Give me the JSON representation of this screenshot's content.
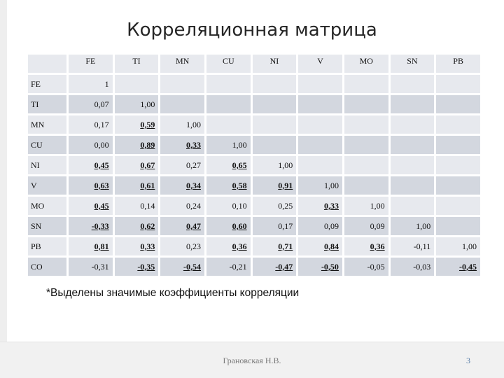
{
  "slide": {
    "title": "Корреляционная матрица",
    "note": "*Выделены значимые коэффициенты корреляции",
    "author": "Грановская Н.В.",
    "page_number": "3",
    "colors": {
      "row_light": "#e7e9ee",
      "row_dark": "#d3d7df",
      "page_number": "#5a7fa8"
    }
  },
  "table": {
    "columns": [
      "FE",
      "TI",
      "MN",
      "CU",
      "NI",
      "V",
      "MO",
      "SN",
      "PB"
    ],
    "rows": [
      {
        "label": "FE",
        "cells": [
          {
            "v": "1",
            "s": false
          }
        ]
      },
      {
        "label": "TI",
        "cells": [
          {
            "v": "0,07",
            "s": false
          },
          {
            "v": "1,00",
            "s": false
          }
        ]
      },
      {
        "label": "MN",
        "cells": [
          {
            "v": "0,17",
            "s": false
          },
          {
            "v": "0,59",
            "s": true
          },
          {
            "v": "1,00",
            "s": false
          }
        ]
      },
      {
        "label": "CU",
        "cells": [
          {
            "v": "0,00",
            "s": false
          },
          {
            "v": "0,89",
            "s": true
          },
          {
            "v": "0,33",
            "s": true
          },
          {
            "v": "1,00",
            "s": false
          }
        ]
      },
      {
        "label": "NI",
        "cells": [
          {
            "v": "0,45",
            "s": true
          },
          {
            "v": "0,67",
            "s": true
          },
          {
            "v": "0,27",
            "s": false
          },
          {
            "v": "0,65",
            "s": true
          },
          {
            "v": "1,00",
            "s": false
          }
        ]
      },
      {
        "label": "V",
        "cells": [
          {
            "v": "0,63",
            "s": true
          },
          {
            "v": "0,61",
            "s": true
          },
          {
            "v": "0,34",
            "s": true
          },
          {
            "v": "0,58",
            "s": true
          },
          {
            "v": "0,91",
            "s": true
          },
          {
            "v": "1,00",
            "s": false
          }
        ]
      },
      {
        "label": "MO",
        "cells": [
          {
            "v": "0,45",
            "s": true
          },
          {
            "v": "0,14",
            "s": false
          },
          {
            "v": "0,24",
            "s": false
          },
          {
            "v": "0,10",
            "s": false
          },
          {
            "v": "0,25",
            "s": false
          },
          {
            "v": "0,33",
            "s": true
          },
          {
            "v": "1,00",
            "s": false
          }
        ]
      },
      {
        "label": "SN",
        "cells": [
          {
            "v": "-0,33",
            "s": true
          },
          {
            "v": "0,62",
            "s": true
          },
          {
            "v": "0,47",
            "s": true
          },
          {
            "v": "0,60",
            "s": true
          },
          {
            "v": "0,17",
            "s": false
          },
          {
            "v": "0,09",
            "s": false
          },
          {
            "v": "0,09",
            "s": false
          },
          {
            "v": "1,00",
            "s": false
          }
        ]
      },
      {
        "label": "PB",
        "cells": [
          {
            "v": "0,81",
            "s": true
          },
          {
            "v": "0,33",
            "s": true
          },
          {
            "v": "0,23",
            "s": false
          },
          {
            "v": "0,36",
            "s": true
          },
          {
            "v": "0,71",
            "s": true
          },
          {
            "v": "0,84",
            "s": true
          },
          {
            "v": "0,36",
            "s": true
          },
          {
            "v": "-0,11",
            "s": false
          },
          {
            "v": "1,00",
            "s": false
          }
        ]
      },
      {
        "label": "CO",
        "cells": [
          {
            "v": "-0,31",
            "s": false
          },
          {
            "v": "-0,35",
            "s": true
          },
          {
            "v": "-0,54",
            "s": true
          },
          {
            "v": "-0,21",
            "s": false
          },
          {
            "v": "-0,47",
            "s": true
          },
          {
            "v": "-0,50",
            "s": true
          },
          {
            "v": "-0,05",
            "s": false
          },
          {
            "v": "-0,03",
            "s": false
          },
          {
            "v": "-0,45",
            "s": true
          }
        ]
      }
    ]
  }
}
